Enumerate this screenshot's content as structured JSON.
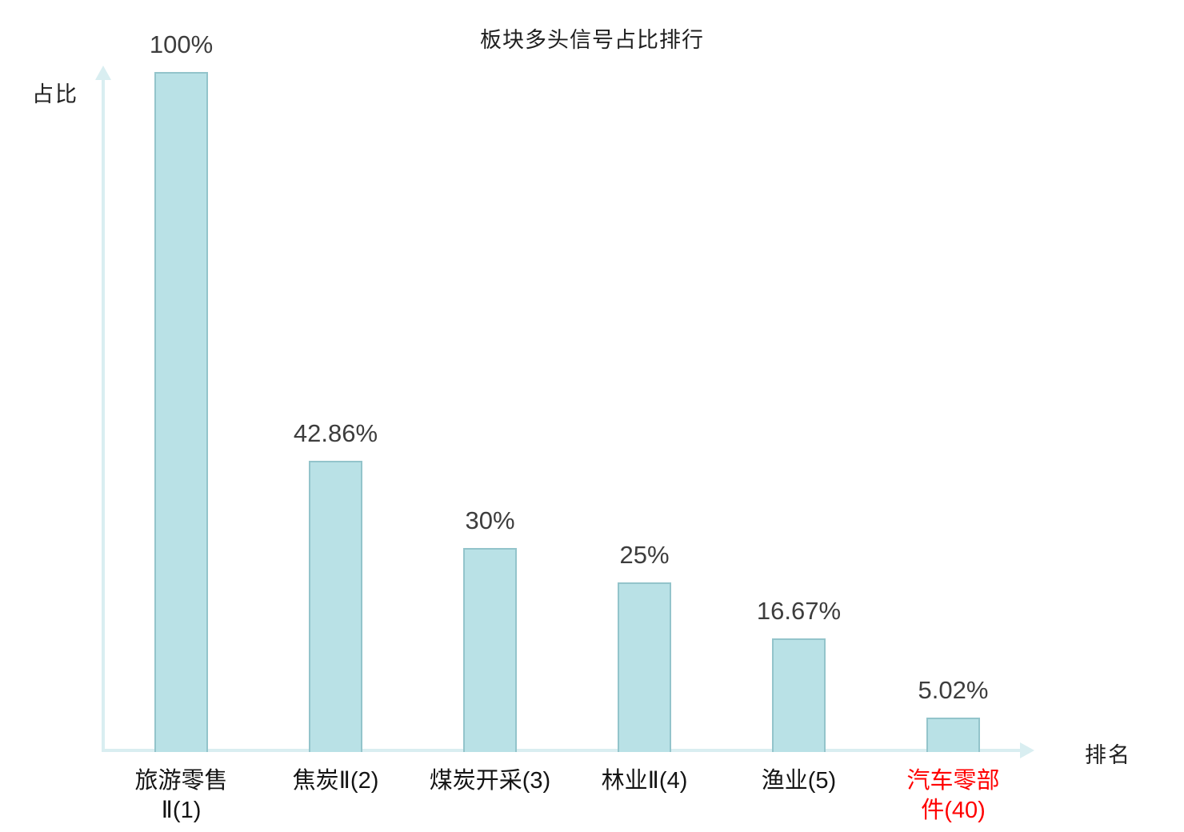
{
  "chart_data": {
    "type": "bar",
    "title": "板块多头信号占比排行",
    "xlabel": "排名",
    "ylabel": "占比",
    "ylim": [
      0,
      100
    ],
    "grid": false,
    "legend": "none",
    "categories": [
      {
        "text": "旅游零售Ⅱ(1)",
        "lines": [
          "旅游零售",
          "Ⅱ(1)"
        ],
        "highlight": false
      },
      {
        "text": "焦炭Ⅱ(2)",
        "lines": [
          "焦炭Ⅱ(2)"
        ],
        "highlight": false
      },
      {
        "text": "煤炭开采(3)",
        "lines": [
          "煤炭开采(3)"
        ],
        "highlight": false
      },
      {
        "text": "林业Ⅱ(4)",
        "lines": [
          "林业Ⅱ(4)"
        ],
        "highlight": false
      },
      {
        "text": "渔业(5)",
        "lines": [
          "渔业(5)"
        ],
        "highlight": false
      },
      {
        "text": "汽车零部件(40)",
        "lines": [
          "汽车零部",
          "件(40)"
        ],
        "highlight": true
      }
    ],
    "values": [
      100,
      42.86,
      30,
      25,
      16.67,
      5.02
    ],
    "value_labels": [
      "100%",
      "42.86%",
      "30%",
      "25%",
      "16.67%",
      "5.02%"
    ],
    "colors": {
      "bar_fill": "#b9e1e6",
      "bar_border": "#93c4cb",
      "axis": "#d9eef1",
      "value_text": "#3d3d3d",
      "category_text": "#141414",
      "highlight_text": "#ff0000"
    }
  }
}
